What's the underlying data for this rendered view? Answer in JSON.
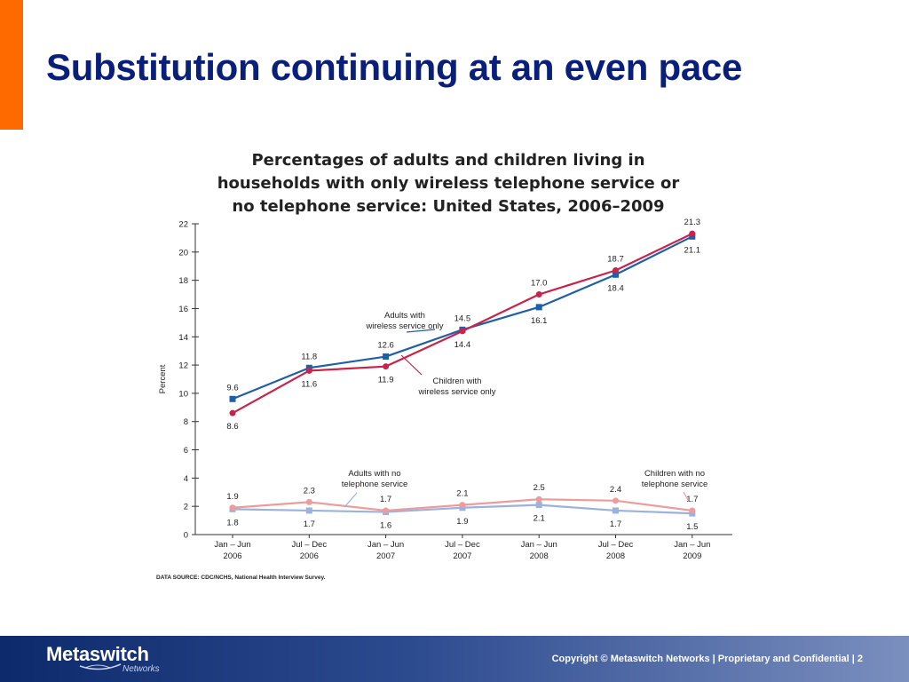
{
  "slide": {
    "title": "Substitution continuing at an even pace",
    "accent_color": "#ff6a00",
    "title_color": "#0a1f7a"
  },
  "chart_data": {
    "type": "line",
    "title_lines": [
      "Percentages of adults and children living in",
      "households with only wireless telephone service or",
      "no telephone service: United States, 2006–2009"
    ],
    "ylabel": "Percent",
    "xlabel": "",
    "ylim": [
      0,
      22
    ],
    "y_ticks": [
      "0",
      "2",
      "4",
      "6",
      "8",
      "10",
      "12",
      "14",
      "16",
      "18",
      "20",
      "22"
    ],
    "categories": [
      [
        "Jan – Jun",
        "2006"
      ],
      [
        "Jul – Dec",
        "2006"
      ],
      [
        "Jan – Jun",
        "2007"
      ],
      [
        "Jul – Dec",
        "2007"
      ],
      [
        "Jan – Jun",
        "2008"
      ],
      [
        "Jul – Dec",
        "2008"
      ],
      [
        "Jan – Jun",
        "2009"
      ]
    ],
    "series": [
      {
        "name": "Adults with wireless service only",
        "label_lines": [
          "Adults with",
          "wireless service only"
        ],
        "values": [
          9.6,
          11.8,
          12.6,
          14.5,
          16.1,
          18.4,
          21.1
        ],
        "value_labels": [
          "9.6",
          "11.8",
          "12.6",
          "14.5",
          "16.1",
          "18.4",
          "21.1"
        ],
        "label_pos": [
          "above",
          "above",
          "above",
          "above",
          "below",
          "below",
          "below"
        ],
        "color": "#1f5fa8",
        "marker": "square"
      },
      {
        "name": "Children with wireless service only",
        "label_lines": [
          "Children with",
          "wireless service only"
        ],
        "values": [
          8.6,
          11.6,
          11.9,
          14.4,
          17.0,
          18.7,
          21.3
        ],
        "value_labels": [
          "8.6",
          "11.6",
          "11.9",
          "14.4",
          "17.0",
          "18.7",
          "21.3"
        ],
        "label_pos": [
          "below",
          "below",
          "below",
          "below",
          "above",
          "above",
          "above"
        ],
        "color": "#c8234a",
        "marker": "circle"
      },
      {
        "name": "Adults with no telephone service",
        "label_lines": [
          "Adults with no",
          "telephone service"
        ],
        "values": [
          1.8,
          1.7,
          1.6,
          1.9,
          2.1,
          1.7,
          1.5
        ],
        "value_labels": [
          "1.8",
          "1.7",
          "1.6",
          "1.9",
          "2.1",
          "1.7",
          "1.5"
        ],
        "label_pos": [
          "below",
          "below",
          "below",
          "below",
          "below",
          "below",
          "below"
        ],
        "color": "#9bb3dc",
        "marker": "square"
      },
      {
        "name": "Children with no telephone service",
        "label_lines": [
          "Children with no",
          "telephone service"
        ],
        "values": [
          1.9,
          2.3,
          1.7,
          2.1,
          2.5,
          2.4,
          1.7
        ],
        "value_labels": [
          "1.9",
          "2.3",
          "1.7",
          "2.1",
          "2.5",
          "2.4",
          "1.7"
        ],
        "label_pos": [
          "above",
          "above",
          "above",
          "above",
          "above",
          "above",
          "above"
        ],
        "color": "#ec9c9c",
        "marker": "circle"
      }
    ],
    "source": "DATA SOURCE: CDC/NCHS, National Health Interview Survey.",
    "grid": false,
    "legend": "inline callouts"
  },
  "footer": {
    "logo_text": "Metaswitch",
    "logo_sub": "Networks",
    "copyright": "Copyright © Metaswitch Networks  |  Proprietary and Confidential  |  2"
  }
}
